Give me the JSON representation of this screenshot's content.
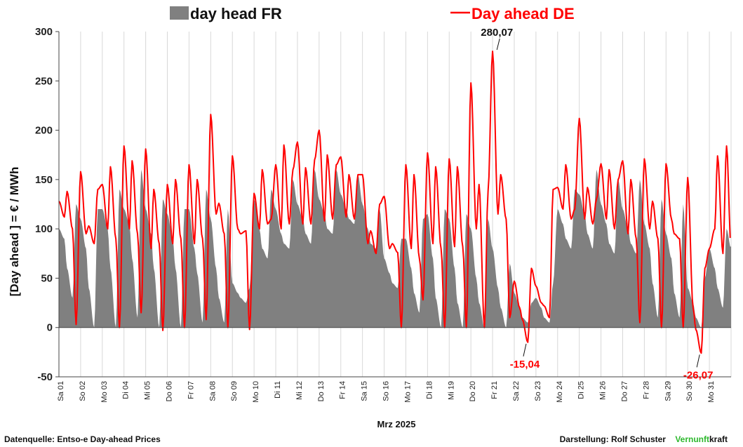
{
  "chart_data": {
    "type": "line",
    "xlabel": "Mrz 2025",
    "ylabel": "[Day ahead ]  = € / MWh",
    "ylim": [
      -50,
      300
    ],
    "yticks": [
      -50,
      0,
      50,
      100,
      150,
      200,
      250,
      300
    ],
    "grid": "vertical",
    "legend_position": "top",
    "categories": [
      "Sa 01",
      "So 02",
      "Mo 03",
      "Di 04",
      "Mi 05",
      "Do 06",
      "Fr 07",
      "Sa 08",
      "So 09",
      "Mo 10",
      "Di 11",
      "Mi 12",
      "Do 13",
      "Fr 14",
      "Sa 15",
      "So 16",
      "Mo 17",
      "Di 18",
      "Mi 19",
      "Do 20",
      "Fr 21",
      "Sa 22",
      "So 23",
      "Mo 24",
      "Di 25",
      "Mi 26",
      "Do 27",
      "Fr 28",
      "Sa 29",
      "So 30",
      "Mo 31"
    ],
    "series": [
      {
        "name": "day head FR",
        "style": "area",
        "color": "#808080",
        "day_profiles": [
          [
            100,
            90,
            60,
            30,
            125
          ],
          [
            110,
            80,
            40,
            0,
            120
          ],
          [
            120,
            100,
            60,
            0,
            140
          ],
          [
            120,
            105,
            70,
            10,
            160
          ],
          [
            120,
            95,
            60,
            0,
            130
          ],
          [
            115,
            90,
            60,
            0,
            120
          ],
          [
            120,
            80,
            55,
            5,
            140
          ],
          [
            110,
            60,
            30,
            5,
            120
          ],
          [
            45,
            35,
            30,
            25,
            40
          ],
          [
            130,
            100,
            80,
            70,
            140
          ],
          [
            120,
            95,
            85,
            80,
            150
          ],
          [
            125,
            110,
            95,
            85,
            160
          ],
          [
            130,
            115,
            100,
            95,
            160
          ],
          [
            135,
            120,
            110,
            105,
            155
          ],
          [
            125,
            100,
            85,
            80,
            120
          ],
          [
            70,
            55,
            45,
            40,
            90
          ],
          [
            90,
            60,
            35,
            15,
            110
          ],
          [
            115,
            70,
            30,
            0,
            120
          ],
          [
            110,
            60,
            25,
            0,
            115
          ],
          [
            100,
            50,
            25,
            0,
            110
          ],
          [
            80,
            40,
            20,
            0,
            65
          ],
          [
            35,
            20,
            10,
            5,
            25
          ],
          [
            30,
            20,
            10,
            5,
            45
          ],
          [
            120,
            105,
            90,
            80,
            140
          ],
          [
            135,
            115,
            95,
            80,
            160
          ],
          [
            125,
            105,
            85,
            75,
            150
          ],
          [
            120,
            100,
            85,
            75,
            150
          ],
          [
            105,
            80,
            45,
            10,
            130
          ],
          [
            95,
            70,
            35,
            10,
            125
          ],
          [
            40,
            25,
            10,
            0,
            50
          ],
          [
            80,
            60,
            40,
            20,
            100
          ]
        ]
      },
      {
        "name": "Day ahead DE",
        "style": "line",
        "color": "#ff0000",
        "day_profiles": [
          [
            128,
            112,
            138,
            100,
            3
          ],
          [
            158,
            95,
            103,
            85,
            140
          ],
          [
            145,
            100,
            163,
            90,
            0
          ],
          [
            184,
            100,
            169,
            95,
            15
          ],
          [
            181,
            80,
            140,
            85,
            -3
          ],
          [
            145,
            85,
            150,
            90,
            0
          ],
          [
            165,
            85,
            150,
            90,
            8
          ],
          [
            216,
            115,
            126,
            95,
            0
          ],
          [
            174,
            100,
            95,
            98,
            -2
          ],
          [
            136,
            100,
            160,
            105,
            110
          ],
          [
            165,
            100,
            185,
            105,
            160
          ],
          [
            188,
            105,
            162,
            105,
            170
          ],
          [
            200,
            108,
            175,
            110,
            165
          ],
          [
            173,
            112,
            155,
            110,
            155
          ],
          [
            155,
            85,
            98,
            75,
            125
          ],
          [
            133,
            80,
            85,
            76,
            0
          ],
          [
            165,
            80,
            155,
            70,
            28
          ],
          [
            177,
            85,
            163,
            80,
            0
          ],
          [
            171,
            82,
            163,
            82,
            0
          ],
          [
            248,
            100,
            145,
            0,
            138
          ],
          [
            280,
            115,
            155,
            110,
            10
          ],
          [
            47,
            20,
            8,
            -15,
            60
          ],
          [
            42,
            25,
            22,
            10,
            140
          ],
          [
            142,
            120,
            165,
            110,
            120
          ],
          [
            212,
            110,
            142,
            105,
            130
          ],
          [
            166,
            110,
            160,
            100,
            150
          ],
          [
            169,
            95,
            150,
            90,
            5
          ],
          [
            171,
            100,
            128,
            90,
            0
          ],
          [
            166,
            110,
            95,
            90,
            0
          ],
          [
            152,
            20,
            -2,
            -26,
            60
          ],
          [
            80,
            100,
            174,
            75,
            184
          ]
        ]
      }
    ],
    "annotations": [
      {
        "text": "280,07",
        "day": 20.2,
        "value": 280.07,
        "color": "#111111"
      },
      {
        "text": "-15,04",
        "day": 21.55,
        "value": -15.04,
        "color": "#ff0000"
      },
      {
        "text": "-26,07",
        "day": 29.55,
        "value": -26.07,
        "color": "#ff0000"
      }
    ]
  },
  "footer": {
    "source": "Datenquelle: Entso-e  Day-ahead Prices",
    "credit_prefix": "Darstellung:  Rolf Schuster",
    "brand_green": "Vernunft",
    "brand_rest": "kraft"
  }
}
